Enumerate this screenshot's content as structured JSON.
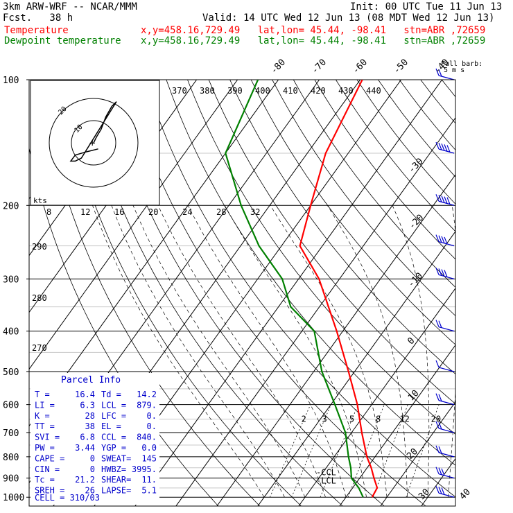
{
  "header": {
    "model": "3km ARW-WRF -- NCAR/MMM",
    "init": "Init: 00 UTC Tue 11 Jun 13",
    "fcst": "Fcst.   38 h",
    "valid": "Valid: 14 UTC Wed 12 Jun 13 (08 MDT Wed 12 Jun 13)",
    "temp_label": "Temperature",
    "dew_label": "Dewpoint temperature",
    "temp_info": "x,y=458.16,729.49   lat,lon= 45.44, -98.41   stn=ABR ,72659",
    "dew_info": "x,y=458.16,729.49   lat,lon= 45.44, -98.41   stn=ABR ,72659"
  },
  "colors": {
    "temperature": "#ff0000",
    "dewpoint": "#008000",
    "barb": "#0000cc"
  },
  "skewt": {
    "pressure_ticks": [
      "100",
      "200",
      "300",
      "400",
      "500",
      "600",
      "700",
      "800",
      "900",
      "1000"
    ],
    "isotherm_top_labels": [
      "-80",
      "-70",
      "-60",
      "-50",
      "-40"
    ],
    "isotherm_right_labels": [
      "-30",
      "-20",
      "-10",
      "0",
      "10",
      "20",
      "30",
      "40"
    ],
    "theta_labels": [
      "370",
      "380",
      "390",
      "400",
      "410",
      "420",
      "430",
      "440"
    ],
    "mixing_ratio_labels": [
      "2",
      "3",
      "5",
      "8",
      "12",
      "20"
    ],
    "barb_key": "Full barb:",
    "barb_key_units": "5 m s",
    "ccl_label": "-CCL",
    "lcl_label": "-LCL"
  },
  "hodograph": {
    "units_label": "kts",
    "speed_labels": [
      "8",
      "12",
      "16",
      "20",
      "24",
      "28",
      "32"
    ],
    "ring_labels": [
      "10",
      "20"
    ],
    "height_labels": [
      "290",
      "280",
      "270"
    ]
  },
  "parcel_info": {
    "title": "Parcel Info",
    "rows": [
      [
        "T  =",
        "16.4",
        "Td =",
        "14.2"
      ],
      [
        "LI =",
        "6.3",
        "LCL =",
        "879."
      ],
      [
        "K  =",
        "28",
        "LFC =",
        "0."
      ],
      [
        "TT =",
        "38",
        "EL =",
        "0."
      ],
      [
        "SVI =",
        "6.8",
        "CCL =",
        "840."
      ],
      [
        "PW =",
        "3.44",
        "YGP =",
        "0.0"
      ],
      [
        "CAPE =",
        "0",
        "SWEAT=",
        "145"
      ],
      [
        "CIN =",
        "0",
        "HWBZ=",
        "3995."
      ],
      [
        "Tc =",
        "21.2",
        "SHEAR=",
        "11."
      ],
      [
        "SREH =",
        "26",
        "LAPSE=",
        "5.1"
      ]
    ],
    "cell": "CELL = 310/03"
  },
  "chart_data": {
    "type": "line",
    "y_axis": "pressure",
    "ylim": [
      1000,
      100
    ],
    "series": [
      {
        "name": "Temperature",
        "pressure": [
          1000,
          950,
          900,
          850,
          800,
          700,
          600,
          500,
          400,
          300,
          250,
          200,
          150,
          100
        ],
        "values": [
          16.4,
          16.0,
          13.5,
          11.0,
          8.0,
          2.5,
          -3.5,
          -11.5,
          -21.5,
          -35.0,
          -45.5,
          -50.0,
          -55.5,
          -59.5
        ]
      },
      {
        "name": "Dewpoint temperature",
        "pressure": [
          1000,
          950,
          900,
          850,
          800,
          700,
          600,
          500,
          400,
          350,
          300,
          250,
          200,
          150,
          100
        ],
        "values": [
          14.2,
          11.5,
          8.0,
          6.0,
          3.5,
          -1.5,
          -9.0,
          -18.0,
          -27.0,
          -37.0,
          -44.0,
          -55.5,
          -67.0,
          -80.0,
          -85.0
        ]
      }
    ],
    "wind_barbs": {
      "pressure": [
        100,
        150,
        200,
        250,
        300,
        400,
        500,
        600,
        700,
        800,
        900,
        1000
      ],
      "speed_ms": [
        12,
        25,
        30,
        22,
        18,
        10,
        6,
        8,
        10,
        12,
        15,
        14
      ]
    },
    "hodograph_points": [
      [
        0,
        0
      ],
      [
        2,
        4
      ],
      [
        5,
        9
      ],
      [
        8,
        17
      ],
      [
        12,
        24
      ],
      [
        15,
        27
      ],
      [
        -8,
        -10
      ],
      [
        -12,
        -12
      ],
      [
        -15,
        -12
      ],
      [
        -12,
        -8
      ],
      [
        -5,
        -6
      ],
      [
        3,
        -4
      ]
    ]
  }
}
